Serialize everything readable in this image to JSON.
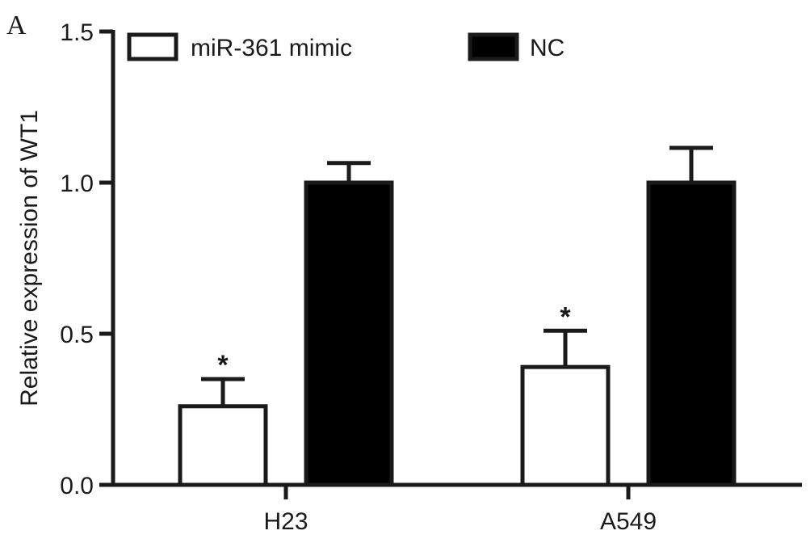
{
  "panel_label": "A",
  "chart_data": {
    "type": "bar",
    "title": "",
    "xlabel": "",
    "ylabel": "Relative expression of WT1",
    "categories": [
      "H23",
      "A549"
    ],
    "series": [
      {
        "name": "miR-361 mimic",
        "values": [
          0.26,
          0.39
        ],
        "errors": [
          0.09,
          0.12
        ],
        "fill": "#ffffff",
        "annotations": [
          "*",
          "*"
        ]
      },
      {
        "name": "NC",
        "values": [
          1.0,
          1.0
        ],
        "errors": [
          0.065,
          0.115
        ],
        "fill": "#000000",
        "annotations": [
          "",
          ""
        ]
      }
    ],
    "ylim": [
      0,
      1.5
    ],
    "yticks": [
      "0.0",
      "0.5",
      "1.0",
      "1.5"
    ],
    "ytick_values": [
      0,
      0.5,
      1.0,
      1.5
    ],
    "legend_position": "top",
    "grid": false
  }
}
